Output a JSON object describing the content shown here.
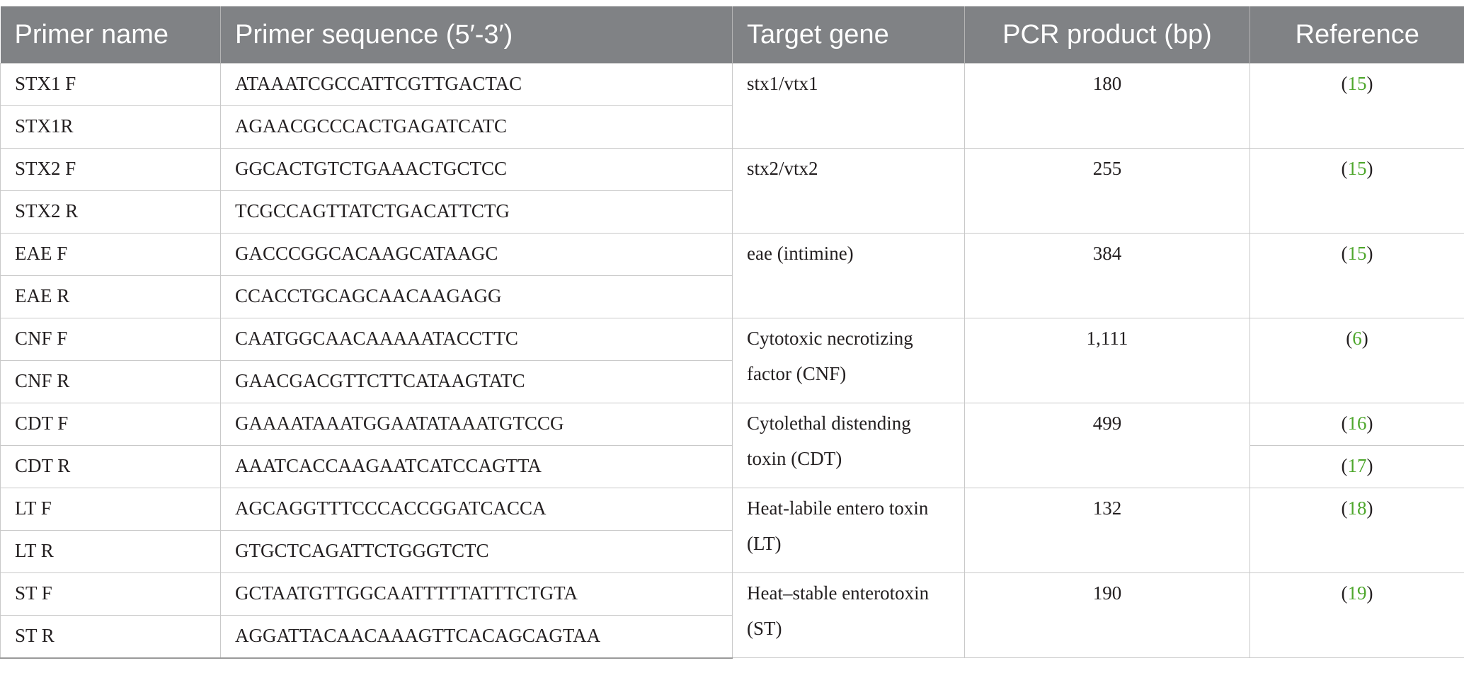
{
  "headers": {
    "primer_name": "Primer name",
    "primer_sequence": "Primer sequence (5′-3′)",
    "target_gene": "Target gene",
    "pcr_product": "PCR product (bp)",
    "reference": "Reference"
  },
  "rows": [
    {
      "primer": "STX1 F",
      "sequence": "ATAAATCGCCATTCGTTGACTAC"
    },
    {
      "primer": "STX1R",
      "sequence": "AGAACGCCCACTGAGATCATC"
    },
    {
      "primer": "STX2 F",
      "sequence": "GGCACTGTCTGAAACTGCTCC"
    },
    {
      "primer": "STX2 R",
      "sequence": "TCGCCAGTTATCTGACATTCTG"
    },
    {
      "primer": "EAE F",
      "sequence": "GACCCGGCACAAGCATAAGC"
    },
    {
      "primer": "EAE R",
      "sequence": "CCACCTGCAGCAACAAGAGG"
    },
    {
      "primer": "CNF F",
      "sequence": "CAATGGCAACAAAAATACCTTC"
    },
    {
      "primer": "CNF R",
      "sequence": "GAACGACGTTCTTCATAAGTATC"
    },
    {
      "primer": "CDT F",
      "sequence": "GAAAATAAATGGAATATAAATGTCCG"
    },
    {
      "primer": "CDT R",
      "sequence": "AAATCACCAAGAATCATCCAGTTA"
    },
    {
      "primer": "LT F",
      "sequence": "AGCAGGTTTCCCACCGGATCACCA"
    },
    {
      "primer": "LT R",
      "sequence": "GTGCTCAGATTCTGGGTCTC"
    },
    {
      "primer": "ST F",
      "sequence": "GCTAATGTTGGCAATTTTTATTTCTGTA"
    },
    {
      "primer": "ST R",
      "sequence": "AGGATTACAACAAAGTTCACAGCAGTAA"
    }
  ],
  "groups": [
    {
      "gene_line1": "stx1/vtx1",
      "gene_line2": "",
      "product": "180"
    },
    {
      "gene_line1": "stx2/vtx2",
      "gene_line2": "",
      "product": "255"
    },
    {
      "gene_line1": "eae (intimine)",
      "gene_line2": "",
      "product": "384"
    },
    {
      "gene_line1": "Cytotoxic necrotizing",
      "gene_line2": "factor (CNF)",
      "product": "1,111"
    },
    {
      "gene_line1": "Cytolethal distending",
      "gene_line2": "toxin (CDT)",
      "product": "499"
    },
    {
      "gene_line1": "Heat-labile entero toxin",
      "gene_line2": "(LT)",
      "product": "132"
    },
    {
      "gene_line1": "Heat–stable enterotoxin",
      "gene_line2": "(ST)",
      "product": "190"
    }
  ],
  "refs": {
    "open": "(",
    "close": ")",
    "stx1": "15",
    "stx2": "15",
    "eae": "15",
    "cnf": "6",
    "cdt_f": "16",
    "cdt_r": "17",
    "lt": "18",
    "st": "19"
  },
  "colors": {
    "header_bg": "#808285",
    "header_text": "#ffffff",
    "reference_link": "#4ea72c",
    "grid_line": "#c9c9c9"
  }
}
